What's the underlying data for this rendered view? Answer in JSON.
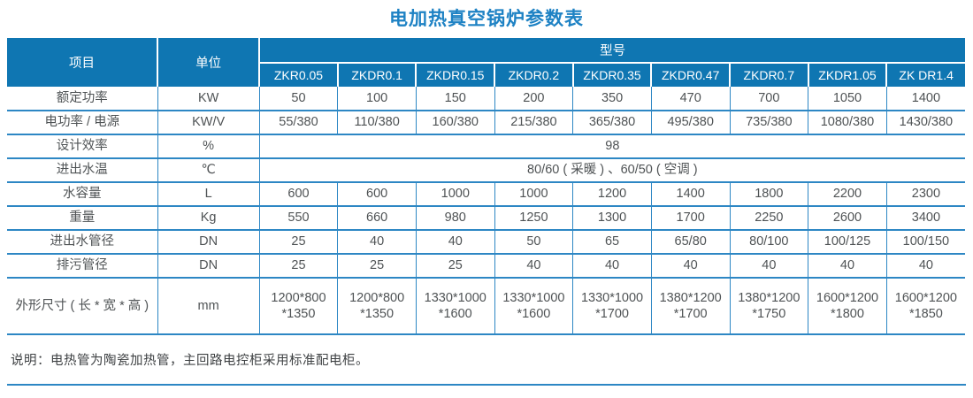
{
  "title": "电加热真空锅炉参数表",
  "colors": {
    "header_bg": "#0f76b2",
    "border": "#2d87c4",
    "title": "#1e82c4",
    "text": "#4f5355"
  },
  "header": {
    "item_label": "项目",
    "unit_label": "单位",
    "model_label": "型号",
    "models": [
      "ZKR0.05",
      "ZKDR0.1",
      "ZKDR0.15",
      "ZKDR0.2",
      "ZKDR0.35",
      "ZKDR0.47",
      "ZKDR0.7",
      "ZKDR1.05",
      "ZK DR1.4"
    ]
  },
  "rows": [
    {
      "label": "额定功率",
      "unit": "KW",
      "values": [
        "50",
        "100",
        "150",
        "200",
        "350",
        "470",
        "700",
        "1050",
        "1400"
      ]
    },
    {
      "label": "电功率 / 电源",
      "unit": "KW/V",
      "values": [
        "55/380",
        "110/380",
        "160/380",
        "215/380",
        "365/380",
        "495/380",
        "735/380",
        "1080/380",
        "1430/380"
      ]
    },
    {
      "label": "设计效率",
      "unit": "%",
      "merged": "98"
    },
    {
      "label": "进出水温",
      "unit": "℃",
      "merged": "80/60 ( 采暖 ) 、60/50 ( 空调 )"
    },
    {
      "label": "水容量",
      "unit": "L",
      "values": [
        "600",
        "600",
        "1000",
        "1000",
        "1200",
        "1400",
        "1800",
        "2200",
        "2300"
      ]
    },
    {
      "label": "重量",
      "unit": "Kg",
      "values": [
        "550",
        "660",
        "980",
        "1250",
        "1300",
        "1700",
        "2250",
        "2600",
        "3400"
      ]
    },
    {
      "label": "进出水管径",
      "unit": "DN",
      "values": [
        "25",
        "40",
        "40",
        "50",
        "65",
        "65/80",
        "80/100",
        "100/125",
        "100/150"
      ]
    },
    {
      "label": "排污管径",
      "unit": "DN",
      "values": [
        "25",
        "25",
        "25",
        "40",
        "40",
        "40",
        "40",
        "40",
        "40"
      ]
    },
    {
      "label": "外形尺寸 ( 长 * 宽 * 高 )",
      "unit": "mm",
      "tall": true,
      "values": [
        "1200*800\n*1350",
        "1200*800\n*1350",
        "1330*1000\n*1600",
        "1330*1000\n*1600",
        "1330*1000\n*1700",
        "1380*1200\n*1700",
        "1380*1200\n*1750",
        "1600*1200\n*1800",
        "1600*1200\n*1850"
      ]
    }
  ],
  "note": "说明：电热管为陶瓷加热管，主回路电控柜采用标准配电柜。"
}
